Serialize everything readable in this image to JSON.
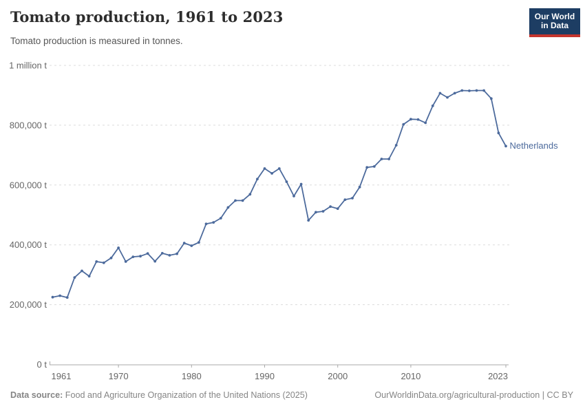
{
  "header": {
    "title": "Tomato production, 1961 to 2023",
    "subtitle": "Tomato production is measured in tonnes."
  },
  "logo": {
    "line1": "Our World",
    "line2": "in Data",
    "bg_color": "#1d3d63",
    "bar_color": "#c5352e"
  },
  "chart_data": {
    "type": "line",
    "title": "Tomato production, 1961 to 2023",
    "ylabel": "tonnes",
    "xlabel": "",
    "grid": "horizontal-dashed",
    "legend_position": "end-of-line-label",
    "ylim": [
      0,
      1000000
    ],
    "xlim": [
      1961,
      2023
    ],
    "xticks": [
      1961,
      1970,
      1980,
      1990,
      2000,
      2010,
      2023
    ],
    "yticks": [
      {
        "value": 0,
        "label": "0 t"
      },
      {
        "value": 200000,
        "label": "200,000 t"
      },
      {
        "value": 400000,
        "label": "400,000 t"
      },
      {
        "value": 600000,
        "label": "600,000 t"
      },
      {
        "value": 800000,
        "label": "800,000 t"
      },
      {
        "value": 1000000,
        "label": "1 million t"
      }
    ],
    "x": [
      1961,
      1962,
      1963,
      1964,
      1965,
      1966,
      1967,
      1968,
      1969,
      1970,
      1971,
      1972,
      1973,
      1974,
      1975,
      1976,
      1977,
      1978,
      1979,
      1980,
      1981,
      1982,
      1983,
      1984,
      1985,
      1986,
      1987,
      1988,
      1989,
      1990,
      1991,
      1992,
      1993,
      1994,
      1995,
      1996,
      1997,
      1998,
      1999,
      2000,
      2001,
      2002,
      2003,
      2004,
      2005,
      2006,
      2007,
      2008,
      2009,
      2010,
      2011,
      2012,
      2013,
      2014,
      2015,
      2016,
      2017,
      2018,
      2019,
      2020,
      2021,
      2022,
      2023
    ],
    "series": [
      {
        "name": "Netherlands",
        "color": "#4c6a9c",
        "values": [
          225000,
          230000,
          224000,
          291000,
          313000,
          295000,
          344000,
          340000,
          356000,
          390000,
          344000,
          360000,
          362000,
          371000,
          345000,
          372000,
          365000,
          370000,
          406000,
          397000,
          408000,
          470000,
          475000,
          489000,
          525000,
          548000,
          548000,
          569000,
          620000,
          655000,
          639000,
          655000,
          611000,
          563000,
          603000,
          482000,
          509000,
          512000,
          528000,
          521000,
          551000,
          556000,
          593000,
          659000,
          662000,
          687000,
          687000,
          733000,
          803000,
          820000,
          819000,
          808000,
          865000,
          907000,
          893000,
          907000,
          916000,
          915000,
          916000,
          916000,
          889000,
          774000,
          730000
        ]
      }
    ]
  },
  "footer": {
    "source_label": "Data source:",
    "source_text": " Food and Agriculture Organization of the United Nations (2025)",
    "link_text": "OurWorldinData.org/agricultural-production | CC BY"
  }
}
